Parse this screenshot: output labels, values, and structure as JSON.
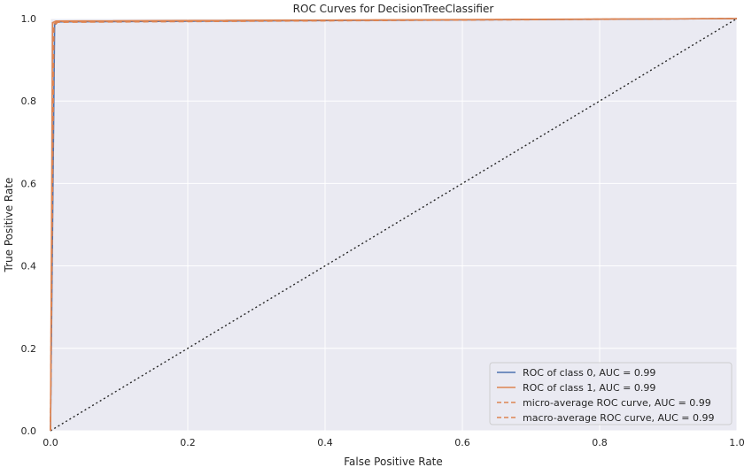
{
  "chart_data": {
    "type": "line",
    "title": "ROC Curves for DecisionTreeClassifier",
    "xlabel": "False Positive Rate",
    "ylabel": "True Positive Rate",
    "xlim": [
      0.0,
      1.0
    ],
    "ylim": [
      0.0,
      1.0
    ],
    "xticks": [
      "0.0",
      "0.2",
      "0.4",
      "0.6",
      "0.8",
      "1.0"
    ],
    "yticks": [
      "0.0",
      "0.2",
      "0.4",
      "0.6",
      "0.8",
      "1.0"
    ],
    "grid": true,
    "legend_position": "lower-right",
    "series": [
      {
        "name": "ROC of class 0, AUC = 0.99",
        "color": "#4c72b0",
        "style": "solid",
        "x": [
          0.0,
          0.006,
          0.011,
          1.0
        ],
        "y": [
          0.0,
          0.985,
          0.992,
          1.0
        ]
      },
      {
        "name": "ROC of class 1, AUC = 0.99",
        "color": "#dd8452",
        "style": "solid",
        "x": [
          0.0,
          0.003,
          0.008,
          1.0
        ],
        "y": [
          0.0,
          0.99,
          0.994,
          1.0
        ]
      },
      {
        "name": "micro-average ROC curve, AUC = 0.99",
        "color": "#dd8452",
        "style": "dashed",
        "x": [
          0.0,
          0.004,
          0.009,
          1.0
        ],
        "y": [
          0.0,
          0.985,
          0.993,
          1.0
        ]
      },
      {
        "name": "macro-average ROC curve, AUC = 0.99",
        "color": "#dd8452",
        "style": "dashed",
        "x": [
          0.0,
          0.005,
          0.01,
          1.0
        ],
        "y": [
          0.0,
          0.98,
          0.991,
          1.0
        ]
      }
    ],
    "reference_line": {
      "x": [
        0.0,
        1.0
      ],
      "y": [
        0.0,
        1.0
      ],
      "color": "#262626",
      "style": "dotted"
    }
  }
}
